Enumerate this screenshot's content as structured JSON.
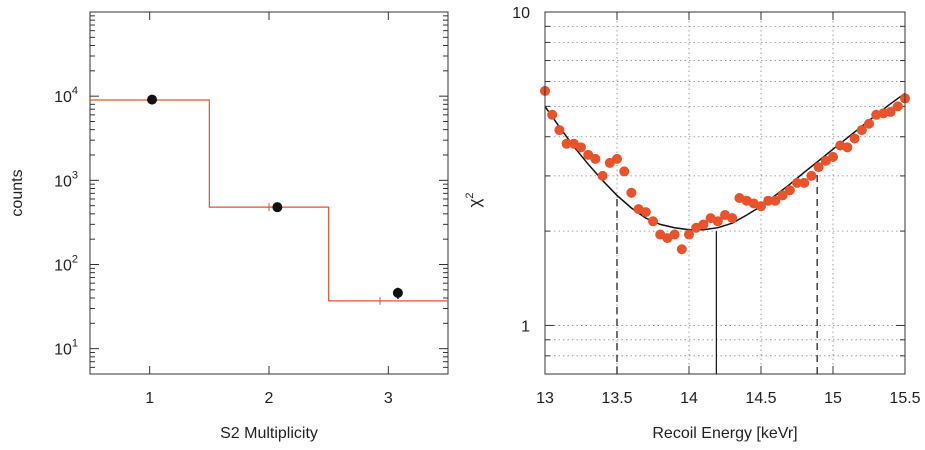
{
  "chart_data": [
    {
      "type": "step",
      "xlabel": "S2 Multiplicity",
      "ylabel": "counts",
      "xlim": [
        0.5,
        3.5
      ],
      "ylim": [
        5,
        100000
      ],
      "yscale": "log",
      "grid": false,
      "x_ticks": [
        1,
        2,
        3
      ],
      "x_tick_labels": [
        "1",
        "2",
        "3"
      ],
      "y_ticks": [
        10,
        100,
        1000,
        10000
      ],
      "y_tick_labels": [
        {
          "base": "10",
          "exp": "1"
        },
        {
          "base": "10",
          "exp": "2"
        },
        {
          "base": "10",
          "exp": "3"
        },
        {
          "base": "10",
          "exp": "4"
        }
      ],
      "colors": {
        "model": "#e2542a",
        "data": "#111111"
      },
      "series": [
        {
          "kind": "model-step",
          "bins": [
            {
              "x0": 0.5,
              "x1": 1.5,
              "y": 9000
            },
            {
              "x0": 1.5,
              "x1": 2.5,
              "y": 480
            },
            {
              "x0": 2.5,
              "x1": 3.5,
              "y": 37
            }
          ],
          "error_marks": [
            {
              "x": 2.0,
              "y": 480
            },
            {
              "x": 2.93,
              "y": 37
            }
          ]
        },
        {
          "kind": "data-points",
          "points": [
            {
              "x": 1.02,
              "y": 9100,
              "err": 300
            },
            {
              "x": 2.07,
              "y": 480,
              "err": 30
            },
            {
              "x": 3.08,
              "y": 46,
              "err": 7
            }
          ]
        }
      ]
    },
    {
      "type": "scatter",
      "xlabel": "Recoil Energy [keVr]",
      "ylabel": {
        "base": "χ",
        "exp": "2"
      },
      "xlim": [
        13,
        15.5
      ],
      "ylim": [
        0.7,
        10
      ],
      "yscale": "log",
      "grid": true,
      "x_ticks": [
        13,
        13.5,
        14,
        14.5,
        15,
        15.5
      ],
      "x_tick_labels": [
        "13",
        "13.5",
        "14",
        "14.5",
        "15",
        "15.5"
      ],
      "y_ticks": [
        1,
        10
      ],
      "y_tick_labels": [
        "1",
        "10"
      ],
      "colors": {
        "points": "#e8532b",
        "curve": "#111111"
      },
      "best_fit_x": 14.19,
      "bound_lines_x": [
        13.5,
        14.89
      ],
      "series": [
        {
          "kind": "points",
          "x": [
            13.0,
            13.05,
            13.1,
            13.15,
            13.2,
            13.25,
            13.3,
            13.35,
            13.4,
            13.45,
            13.5,
            13.55,
            13.6,
            13.65,
            13.7,
            13.75,
            13.8,
            13.85,
            13.9,
            13.95,
            14.0,
            14.05,
            14.1,
            14.15,
            14.2,
            14.25,
            14.3,
            14.35,
            14.4,
            14.45,
            14.5,
            14.55,
            14.6,
            14.65,
            14.7,
            14.75,
            14.8,
            14.85,
            14.9,
            14.95,
            15.0,
            15.05,
            15.1,
            15.15,
            15.2,
            15.25,
            15.3,
            15.35,
            15.4,
            15.45,
            15.5
          ],
          "y": [
            5.6,
            4.7,
            4.2,
            3.8,
            3.8,
            3.7,
            3.5,
            3.4,
            3.0,
            3.3,
            3.4,
            3.1,
            2.65,
            2.35,
            2.3,
            2.15,
            1.95,
            1.9,
            1.95,
            1.75,
            1.95,
            2.05,
            2.1,
            2.2,
            2.15,
            2.25,
            2.2,
            2.55,
            2.5,
            2.45,
            2.4,
            2.5,
            2.5,
            2.6,
            2.7,
            2.85,
            2.85,
            3.0,
            3.2,
            3.35,
            3.45,
            3.75,
            3.7,
            3.95,
            4.2,
            4.4,
            4.7,
            4.75,
            4.8,
            5.0,
            5.3
          ]
        },
        {
          "kind": "curve",
          "x": [
            13.0,
            13.1,
            13.2,
            13.3,
            13.4,
            13.5,
            13.6,
            13.7,
            13.8,
            13.9,
            14.0,
            14.1,
            14.2,
            14.3,
            14.4,
            14.5,
            14.6,
            14.7,
            14.8,
            14.9,
            15.0,
            15.1,
            15.2,
            15.3,
            15.4,
            15.5
          ],
          "y": [
            5.0,
            4.3,
            3.72,
            3.27,
            2.9,
            2.6,
            2.37,
            2.2,
            2.1,
            2.05,
            2.02,
            2.02,
            2.05,
            2.12,
            2.25,
            2.4,
            2.6,
            2.82,
            3.08,
            3.35,
            3.65,
            3.97,
            4.32,
            4.7,
            5.1,
            5.5
          ]
        }
      ]
    }
  ]
}
